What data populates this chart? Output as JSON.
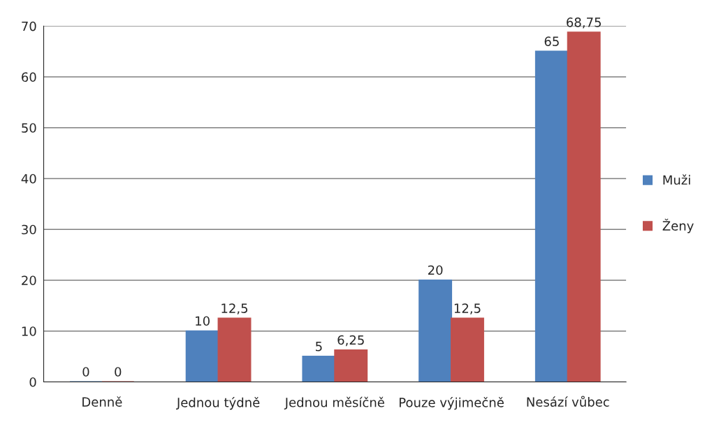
{
  "chart_data": {
    "type": "bar",
    "categories": [
      "Denně",
      "Jednou týdně",
      "Jednou měsíčně",
      "Pouze výjimečně",
      "Nesází vůbec"
    ],
    "series": [
      {
        "name": "Muži",
        "color": "#4f81bd",
        "values": [
          0,
          10,
          5,
          20,
          65
        ],
        "value_labels": [
          "0",
          "10",
          "5",
          "20",
          "65"
        ]
      },
      {
        "name": "Ženy",
        "color": "#c0504d",
        "values": [
          0,
          12.5,
          6.25,
          12.5,
          68.75
        ],
        "value_labels": [
          "0",
          "12,5",
          "6,25",
          "12,5",
          "68,75"
        ]
      }
    ],
    "ylim": [
      0,
      70
    ],
    "yticks": [
      0,
      10,
      20,
      30,
      40,
      50,
      60,
      70
    ],
    "grid": "y",
    "legend": "right"
  }
}
